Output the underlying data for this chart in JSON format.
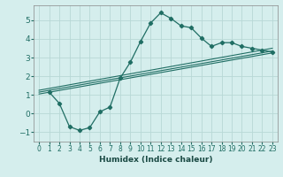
{
  "xlabel": "Humidex (Indice chaleur)",
  "ylabel": "",
  "background_color": "#d5eeed",
  "grid_color": "#b8d8d6",
  "line_color": "#206e64",
  "xlim": [
    -0.5,
    23.5
  ],
  "ylim": [
    -1.5,
    5.8
  ],
  "yticks": [
    -1,
    0,
    1,
    2,
    3,
    4,
    5
  ],
  "xticks": [
    0,
    1,
    2,
    3,
    4,
    5,
    6,
    7,
    8,
    9,
    10,
    11,
    12,
    13,
    14,
    15,
    16,
    17,
    18,
    19,
    20,
    21,
    22,
    23
  ],
  "curve1_x": [
    1,
    2,
    3,
    4,
    5,
    6,
    7,
    8,
    9,
    10,
    11,
    12,
    13,
    14,
    15,
    16,
    17,
    18,
    19,
    20,
    21,
    22,
    23
  ],
  "curve1_y": [
    1.15,
    0.55,
    -0.7,
    -0.9,
    -0.75,
    0.1,
    0.35,
    1.9,
    2.75,
    3.85,
    4.85,
    5.4,
    5.1,
    4.7,
    4.6,
    4.05,
    3.6,
    3.8,
    3.8,
    3.6,
    3.5,
    3.4,
    3.3
  ],
  "line1_x": [
    0,
    23
  ],
  "line1_y": [
    1.15,
    3.35
  ],
  "line2_x": [
    0,
    23
  ],
  "line2_y": [
    1.25,
    3.5
  ],
  "line3_x": [
    0,
    23
  ],
  "line3_y": [
    1.05,
    3.25
  ]
}
